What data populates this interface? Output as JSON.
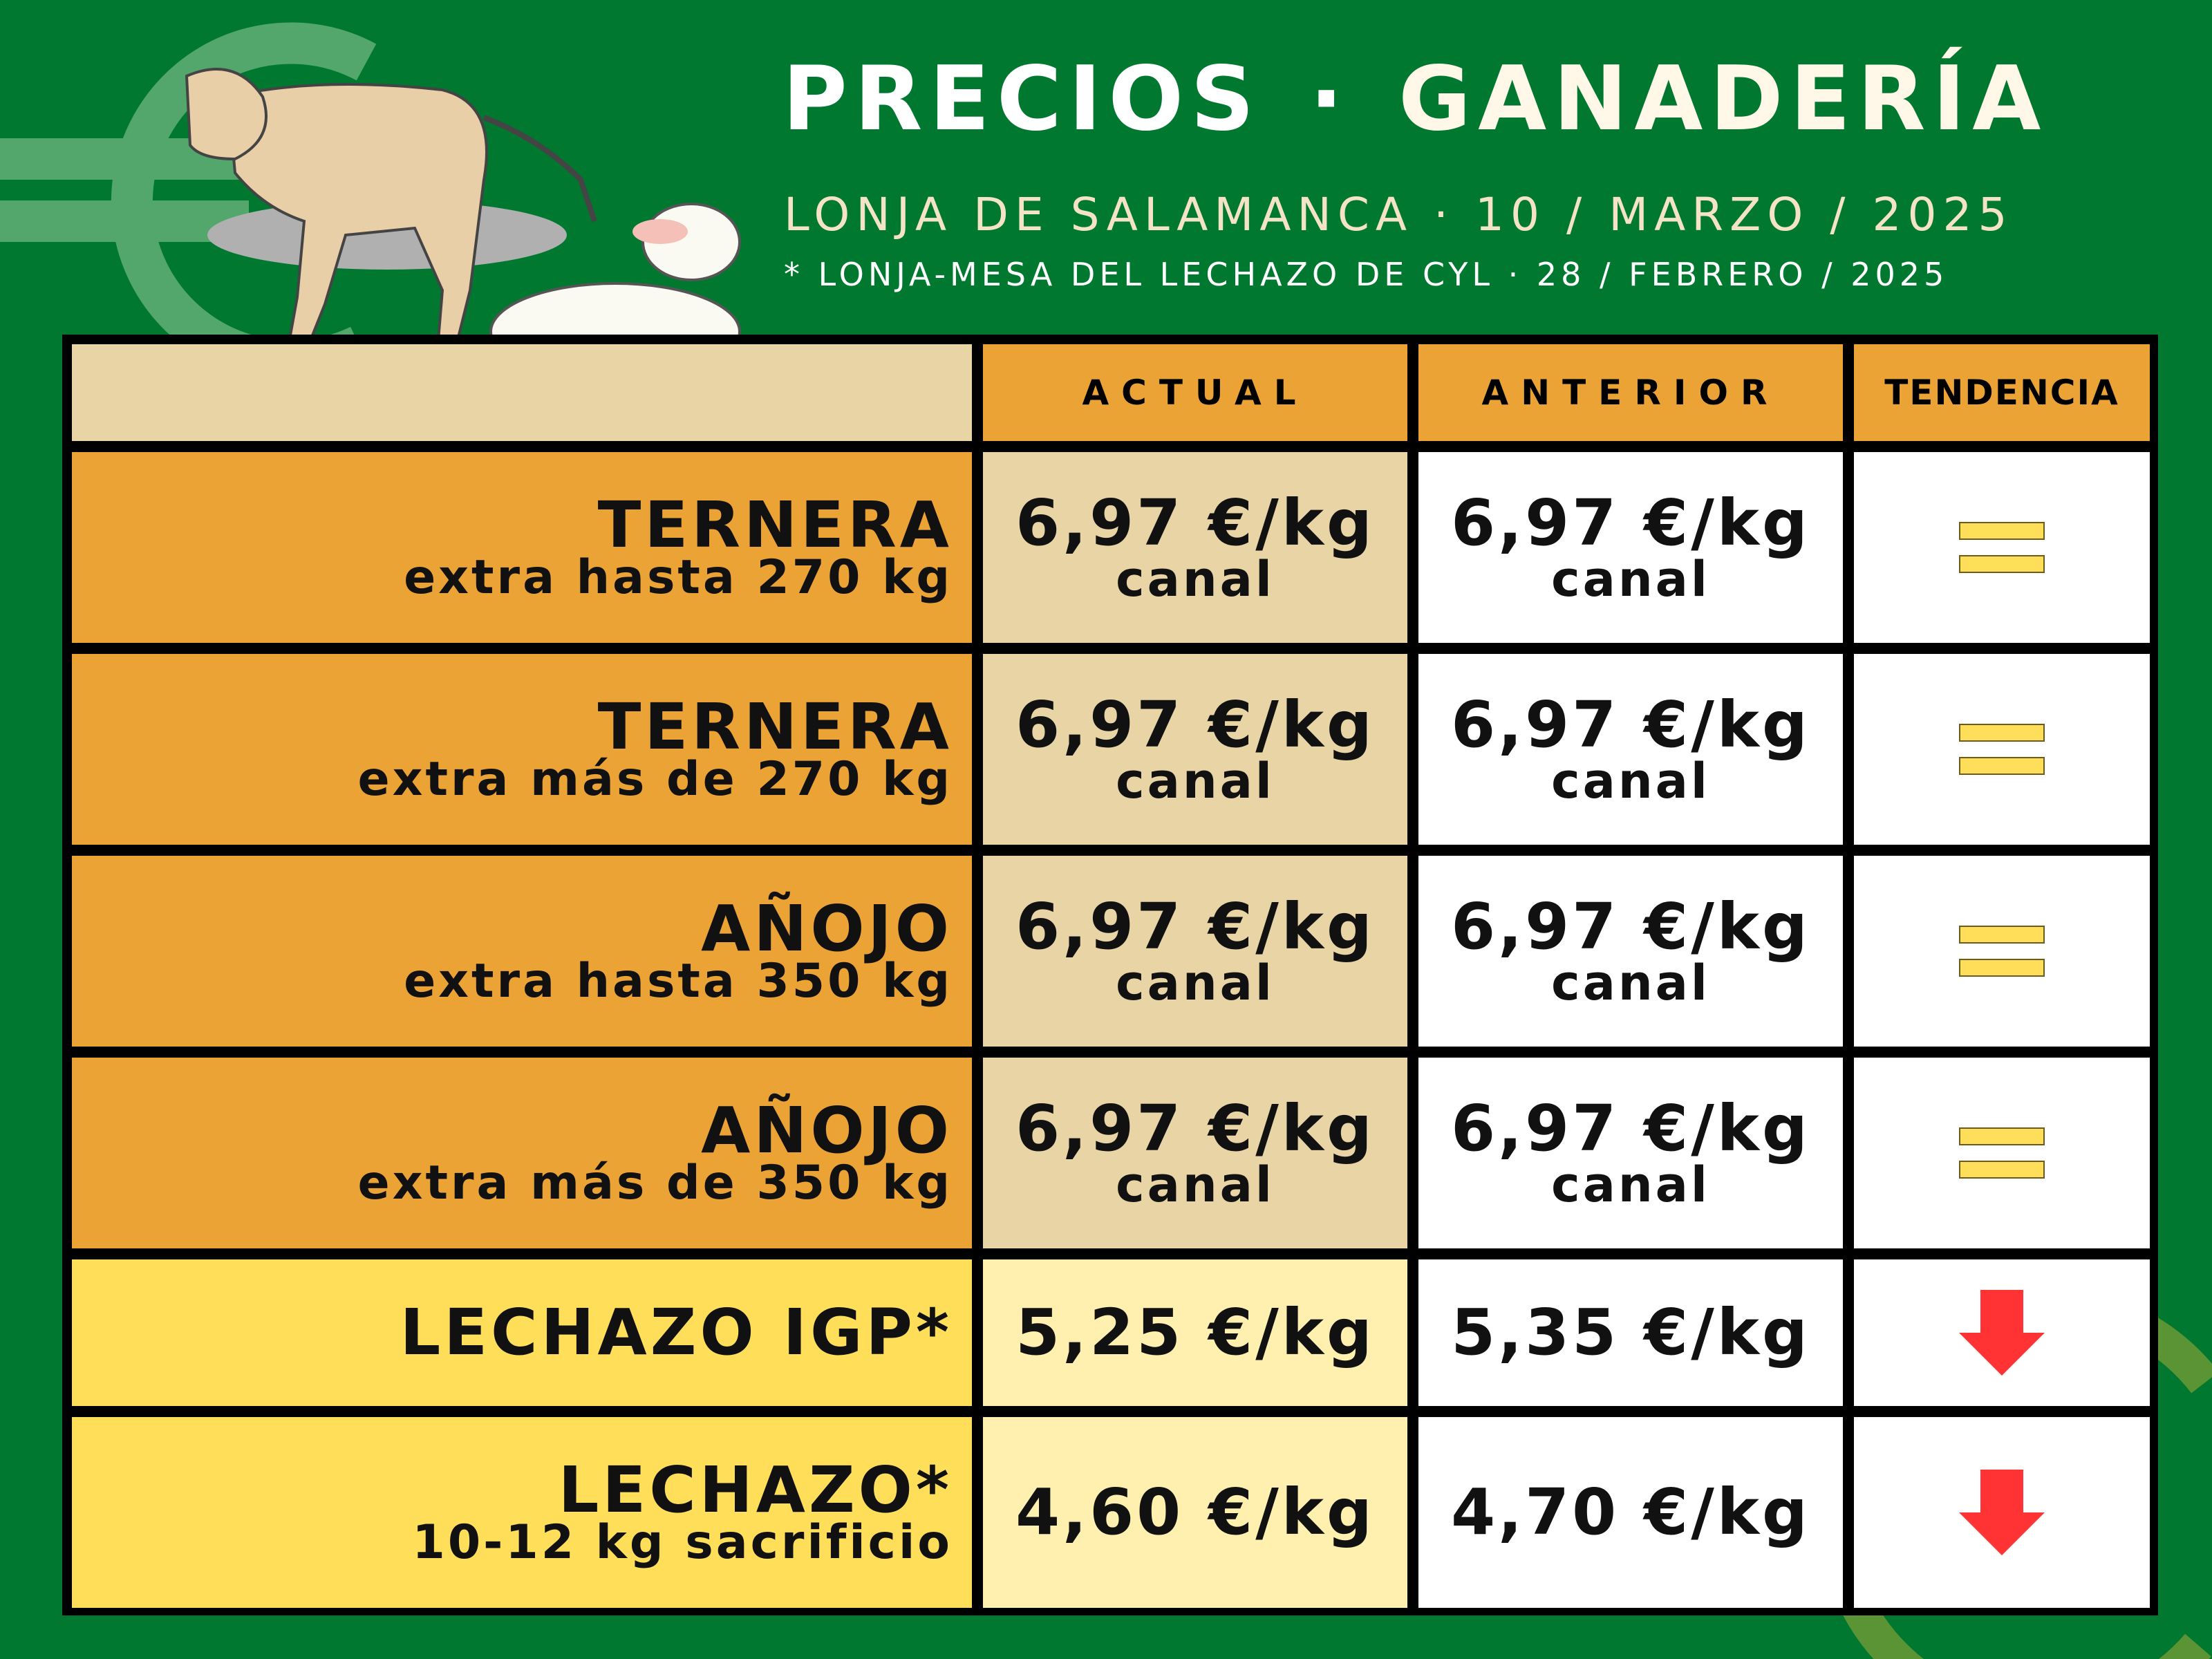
{
  "header": {
    "title_left": "PRECIOS",
    "separator": "·",
    "title_right": "GANADERÍA",
    "subtitle": "LONJA DE SALAMANCA · 10 / MARZO / 2025",
    "note": "* LONJA-MESA DEL LECHAZO DE CYL · 28 / FEBRERO / 2025"
  },
  "columns": {
    "actual": "ACTUAL",
    "anterior": "ANTERIOR",
    "tendencia": "TENDENCIA"
  },
  "colors": {
    "background": "#00782F",
    "orange": "#ECA335",
    "beige": "#E8D4A4",
    "yellow": "#FFDE59",
    "trend_down": "#FF3333"
  },
  "rows": [
    {
      "name": "TERNERA",
      "detail": "extra hasta 270 kg",
      "actual": "6,97 €/kg",
      "actual_unit": "canal",
      "anterior": "6,97 €/kg",
      "anterior_unit": "canal",
      "trend": "equal-icon"
    },
    {
      "name": "TERNERA",
      "detail": "extra más de 270 kg",
      "actual": "6,97 €/kg",
      "actual_unit": "canal",
      "anterior": "6,97 €/kg",
      "anterior_unit": "canal",
      "trend": "equal-icon"
    },
    {
      "name": "AÑOJO",
      "detail": "extra hasta 350 kg",
      "actual": "6,97 €/kg",
      "actual_unit": "canal",
      "anterior": "6,97 €/kg",
      "anterior_unit": "canal",
      "trend": "equal-icon"
    },
    {
      "name": "AÑOJO",
      "detail": "extra más de 350 kg",
      "actual": "6,97 €/kg",
      "actual_unit": "canal",
      "anterior": "6,97 €/kg",
      "anterior_unit": "canal",
      "trend": "equal-icon"
    },
    {
      "name": "LECHAZO IGP*",
      "actual": "5,25 €/kg",
      "anterior": "5,35 €/kg",
      "trend": "arrow-down-icon"
    },
    {
      "name": "LECHAZO*",
      "detail": "10-12 kg sacrificio",
      "actual": "4,60 €/kg",
      "anterior": "4,70 €/kg",
      "trend": "arrow-down-icon"
    }
  ]
}
